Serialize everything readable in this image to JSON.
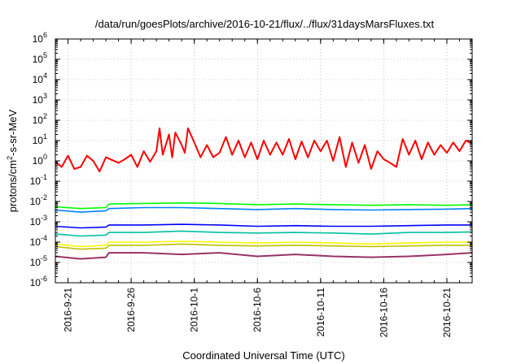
{
  "chart_data": {
    "type": "line",
    "title": "/data/run/goesPlots/archive/2016-10-21/flux/../flux/31daysMarsFluxes.txt",
    "xlabel": "Coordinated Universal Time (UTC)",
    "ylabel": {
      "base": "protons/cm",
      "sup": "2",
      "rest": "-s-sr-MeV"
    },
    "yscale": "log",
    "ylim": [
      1e-06,
      1000000.0
    ],
    "xlim": [
      "2016-09-20",
      "2016-10-23"
    ],
    "x_ticks": [
      "2016-9-21",
      "2016-9-26",
      "2016-10-1",
      "2016-10-6",
      "2016-10-11",
      "2016-10-16",
      "2016-10-21"
    ],
    "y_ticks": [
      {
        "base": "10",
        "exp": "-6"
      },
      {
        "base": "10",
        "exp": "-5"
      },
      {
        "base": "10",
        "exp": "-4"
      },
      {
        "base": "10",
        "exp": "-3"
      },
      {
        "base": "10",
        "exp": "-2"
      },
      {
        "base": "10",
        "exp": "-1"
      },
      {
        "base": "10",
        "exp": "0"
      },
      {
        "base": "10",
        "exp": "1"
      },
      {
        "base": "10",
        "exp": "2"
      },
      {
        "base": "10",
        "exp": "3"
      },
      {
        "base": "10",
        "exp": "4"
      },
      {
        "base": "10",
        "exp": "5"
      },
      {
        "base": "10",
        "exp": "6"
      }
    ],
    "grid": true,
    "series": [
      {
        "color": "#ff0000",
        "style": "thick",
        "x": [
          "2016-09-20T00",
          "2016-09-20T12",
          "2016-09-21T00",
          "2016-09-21T12",
          "2016-09-22T00",
          "2016-09-22T12",
          "2016-09-23T00",
          "2016-09-23T12",
          "2016-09-24T00",
          "2016-09-25T00",
          "2016-09-25T12",
          "2016-09-26T00",
          "2016-09-26T12",
          "2016-09-27T00",
          "2016-09-27T12",
          "2016-09-28T00",
          "2016-09-28T06",
          "2016-09-28T12",
          "2016-09-29T00",
          "2016-09-29T06",
          "2016-09-29T12",
          "2016-09-30T00",
          "2016-09-30T06",
          "2016-09-30T12",
          "2016-10-01T00",
          "2016-10-01T12",
          "2016-10-02T00",
          "2016-10-02T12",
          "2016-10-03T00",
          "2016-10-03T12",
          "2016-10-04T00",
          "2016-10-04T12",
          "2016-10-05T00",
          "2016-10-05T12",
          "2016-10-06T00",
          "2016-10-06T12",
          "2016-10-07T00",
          "2016-10-07T12",
          "2016-10-08T00",
          "2016-10-08T12",
          "2016-10-09T00",
          "2016-10-09T12",
          "2016-10-10T00",
          "2016-10-10T12",
          "2016-10-11T00",
          "2016-10-11T12",
          "2016-10-12T00",
          "2016-10-12T12",
          "2016-10-13T00",
          "2016-10-13T12",
          "2016-10-14T00",
          "2016-10-14T12",
          "2016-10-15T00",
          "2016-10-15T12",
          "2016-10-16T00",
          "2016-10-16T12",
          "2016-10-17T00",
          "2016-10-17T12",
          "2016-10-18T00",
          "2016-10-18T12",
          "2016-10-19T00",
          "2016-10-19T12",
          "2016-10-20T00",
          "2016-10-20T12",
          "2016-10-21T00",
          "2016-10-21T12",
          "2016-10-22T00",
          "2016-10-22T12",
          "2016-10-23T00"
        ],
        "values": [
          0.9,
          0.5,
          1.8,
          0.4,
          0.5,
          1.8,
          1.0,
          0.3,
          1.5,
          0.8,
          1.2,
          2.0,
          0.5,
          3.0,
          0.9,
          3.0,
          40,
          2.0,
          20,
          1.5,
          25,
          6,
          2.5,
          40,
          8,
          1.5,
          6,
          1.5,
          2.5,
          15,
          2.0,
          10,
          1.5,
          8,
          1.2,
          10,
          2.0,
          8,
          2.0,
          12,
          1.2,
          9,
          1.5,
          10,
          3.0,
          10,
          1.0,
          15,
          0.5,
          8,
          0.8,
          6,
          0.4,
          3.0,
          1.2,
          0.8,
          0.5,
          12,
          2.0,
          10,
          1.2,
          8,
          2.0,
          6,
          2.5,
          8,
          3.0,
          10,
          7
        ]
      },
      {
        "color": "#00ff00",
        "style": "thin",
        "x": [
          "2016-09-20",
          "2016-09-22",
          "2016-09-24",
          "2016-09-24T06",
          "2016-09-27",
          "2016-09-30",
          "2016-10-03",
          "2016-10-06",
          "2016-10-09",
          "2016-10-12",
          "2016-10-15",
          "2016-10-18",
          "2016-10-21",
          "2016-10-23"
        ],
        "values": [
          0.0055,
          0.0045,
          0.005,
          0.0075,
          0.008,
          0.0085,
          0.008,
          0.007,
          0.0075,
          0.007,
          0.0065,
          0.007,
          0.0065,
          0.007
        ]
      },
      {
        "color": "#0080ff",
        "style": "thin",
        "x": [
          "2016-09-20",
          "2016-09-22",
          "2016-09-24",
          "2016-09-24T06",
          "2016-09-27",
          "2016-09-30",
          "2016-10-03",
          "2016-10-06",
          "2016-10-09",
          "2016-10-12",
          "2016-10-15",
          "2016-10-18",
          "2016-10-21",
          "2016-10-23"
        ],
        "values": [
          0.0038,
          0.003,
          0.0035,
          0.0045,
          0.005,
          0.005,
          0.0045,
          0.004,
          0.0045,
          0.004,
          0.0038,
          0.004,
          0.0042,
          0.0045
        ]
      },
      {
        "color": "#0000ff",
        "style": "thin",
        "x": [
          "2016-09-20",
          "2016-09-22",
          "2016-09-24",
          "2016-09-24T06",
          "2016-09-27",
          "2016-09-30",
          "2016-10-03",
          "2016-10-06",
          "2016-10-09",
          "2016-10-12",
          "2016-10-15",
          "2016-10-18",
          "2016-10-21",
          "2016-10-23"
        ],
        "values": [
          0.0006,
          0.0005,
          0.00055,
          0.0007,
          0.0007,
          0.00075,
          0.0007,
          0.0006,
          0.00065,
          0.0006,
          0.0006,
          0.00065,
          0.0007,
          0.0007
        ]
      },
      {
        "color": "#00c0a0",
        "style": "thin",
        "x": [
          "2016-09-20",
          "2016-09-22",
          "2016-09-24",
          "2016-09-24T06",
          "2016-09-27",
          "2016-09-30",
          "2016-10-03",
          "2016-10-06",
          "2016-10-09",
          "2016-10-12",
          "2016-10-15",
          "2016-10-18",
          "2016-10-21",
          "2016-10-23"
        ],
        "values": [
          0.00025,
          0.0002,
          0.00022,
          0.0003,
          0.0003,
          0.00035,
          0.0003,
          0.00028,
          0.0003,
          0.00028,
          0.00025,
          0.0003,
          0.0003,
          0.00032
        ]
      },
      {
        "color": "#ffff00",
        "style": "thin",
        "x": [
          "2016-09-20",
          "2016-09-22",
          "2016-09-24",
          "2016-09-24T06",
          "2016-09-27",
          "2016-09-30",
          "2016-10-03",
          "2016-10-06",
          "2016-10-09",
          "2016-10-12",
          "2016-10-15",
          "2016-10-18",
          "2016-10-21",
          "2016-10-23"
        ],
        "values": [
          8e-05,
          6e-05,
          7e-05,
          0.0001,
          0.0001,
          0.00011,
          0.0001,
          9e-05,
          0.0001,
          9e-05,
          8e-05,
          9e-05,
          0.0001,
          0.0001
        ]
      },
      {
        "color": "#c0c000",
        "style": "thin",
        "x": [
          "2016-09-20",
          "2016-09-22",
          "2016-09-24",
          "2016-09-24T06",
          "2016-09-27",
          "2016-09-30",
          "2016-10-03",
          "2016-10-06",
          "2016-10-09",
          "2016-10-12",
          "2016-10-15",
          "2016-10-18",
          "2016-10-21",
          "2016-10-23"
        ],
        "values": [
          6e-05,
          4.5e-05,
          5e-05,
          7e-05,
          7e-05,
          8e-05,
          7e-05,
          6.5e-05,
          7e-05,
          6.5e-05,
          6e-05,
          6.5e-05,
          7e-05,
          7e-05
        ]
      },
      {
        "color": "#993366",
        "style": "thick",
        "x": [
          "2016-09-20",
          "2016-09-22",
          "2016-09-24",
          "2016-09-24T06",
          "2016-09-27",
          "2016-09-30",
          "2016-10-03",
          "2016-10-06",
          "2016-10-09",
          "2016-10-12",
          "2016-10-15",
          "2016-10-18",
          "2016-10-21",
          "2016-10-23"
        ],
        "values": [
          2e-05,
          1.5e-05,
          1.8e-05,
          3e-05,
          3e-05,
          2.5e-05,
          3e-05,
          2e-05,
          2.5e-05,
          2e-05,
          1.8e-05,
          2e-05,
          2.5e-05,
          3e-05
        ]
      }
    ]
  }
}
